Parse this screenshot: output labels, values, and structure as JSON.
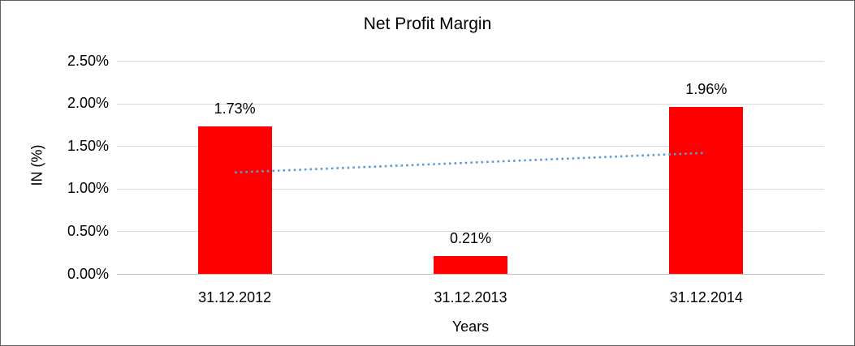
{
  "frame": {
    "background": "#FFFFFF",
    "border_color": "#616161"
  },
  "chart_data": {
    "type": "bar",
    "title": "Net Profit Margin",
    "xlabel": "Years",
    "ylabel": "IN (%)",
    "categories": [
      "31.12.2012",
      "31.12.2013",
      "31.12.2014"
    ],
    "series": [
      {
        "name": "Net Profit Margin",
        "values": [
          1.73,
          0.21,
          1.96
        ],
        "labels": [
          "1.73%",
          "0.21%",
          "1.96%"
        ],
        "color": "#FF0000"
      }
    ],
    "y_ticks": [
      {
        "value": 2.5,
        "label": "2.50%"
      },
      {
        "value": 2.0,
        "label": "2.00%"
      },
      {
        "value": 1.5,
        "label": "1.50%"
      },
      {
        "value": 1.0,
        "label": "1.00%"
      },
      {
        "value": 0.5,
        "label": "0.50%"
      },
      {
        "value": 0.0,
        "label": "0.00%"
      }
    ],
    "ylim": [
      0,
      2.5
    ],
    "grid": true,
    "legend": false,
    "gridline_color": "#D9D9D9",
    "axis_line_color": "#C0C0C0",
    "trendline": {
      "type": "linear",
      "style": "dotted",
      "color": "#5B9BD5",
      "start_value": 1.19,
      "end_value": 1.42
    }
  }
}
